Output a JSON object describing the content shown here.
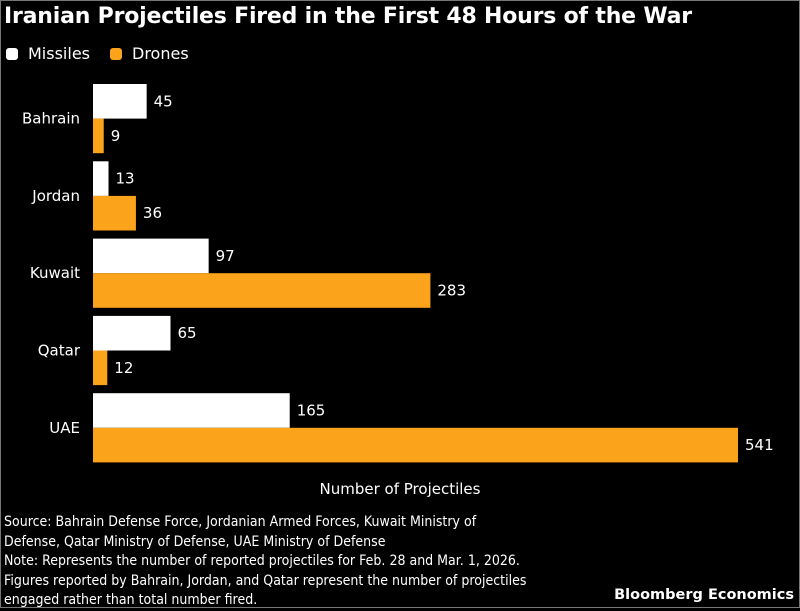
{
  "chart_data": {
    "type": "bar",
    "orientation": "horizontal",
    "title": "Iranian Projectiles Fired in the First 48 Hours of the War",
    "categories": [
      "Bahrain",
      "Jordan",
      "Kuwait",
      "Qatar",
      "UAE"
    ],
    "series": [
      {
        "name": "Missiles",
        "color": "#ffffff",
        "values": [
          45,
          13,
          97,
          65,
          165
        ]
      },
      {
        "name": "Drones",
        "color": "#fba31b",
        "values": [
          9,
          36,
          283,
          12,
          541
        ]
      }
    ],
    "xlabel": "Number of Projectiles",
    "ylabel": "",
    "xlim": [
      0,
      541
    ],
    "grid": false,
    "legend_position": "top-left",
    "data_labels": true
  },
  "footer": {
    "lines": [
      "Source: Bahrain Defense Force, Jordanian Armed Forces, Kuwait Ministry of",
      "Defense, Qatar Ministry of Defense, UAE Ministry of Defense",
      "Note: Represents the number of reported projectiles for Feb. 28 and Mar. 1, 2026.",
      "Figures reported by Bahrain, Jordan, and Qatar represent the number of projectiles",
      "engaged rather than total number fired."
    ],
    "brand": "Bloomberg Economics"
  }
}
